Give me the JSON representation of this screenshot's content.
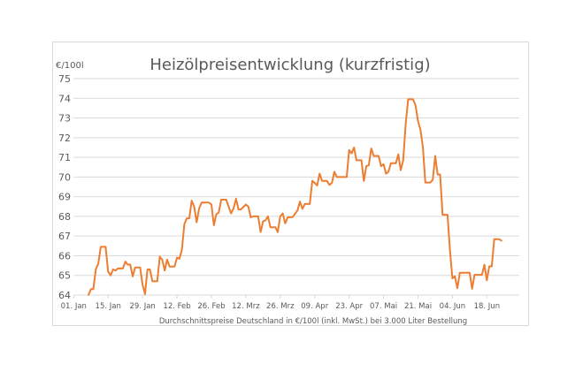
{
  "chart_data": {
    "type": "line",
    "title": "Heizölpreisentwicklung (kurzfristig)",
    "ylabel": "€/100l",
    "xlabel": "Durchschnittspreise Deutschland in €/100l (inkl. MwSt.) bei 3.000 Liter Bestellung",
    "ylim": [
      64,
      75
    ],
    "yticks": [
      64,
      65,
      66,
      67,
      68,
      69,
      70,
      71,
      72,
      73,
      74,
      75
    ],
    "xticks": [
      {
        "date": "01-01",
        "label": "01. Jan"
      },
      {
        "date": "01-15",
        "label": "15. Jan"
      },
      {
        "date": "01-29",
        "label": "29. Jan"
      },
      {
        "date": "02-12",
        "label": "12. Feb"
      },
      {
        "date": "02-26",
        "label": "26. Feb"
      },
      {
        "date": "03-12",
        "label": "12. Mrz"
      },
      {
        "date": "03-26",
        "label": "26. Mrz"
      },
      {
        "date": "04-09",
        "label": "09. Apr"
      },
      {
        "date": "04-23",
        "label": "23. Apr"
      },
      {
        "date": "05-07",
        "label": "07. Mai"
      },
      {
        "date": "05-21",
        "label": "21. Mai"
      },
      {
        "date": "06-04",
        "label": "04. Jun"
      },
      {
        "date": "06-18",
        "label": "18. Jun"
      }
    ],
    "grid": true,
    "legend": "none",
    "line_color": "#ed7d31",
    "points": [
      [
        "01-07",
        64.0
      ],
      [
        "01-08",
        64.3
      ],
      [
        "01-09",
        64.3
      ],
      [
        "01-10",
        65.3
      ],
      [
        "01-11",
        65.6
      ],
      [
        "01-12",
        66.45
      ],
      [
        "01-14",
        66.45
      ],
      [
        "01-15",
        65.2
      ],
      [
        "01-16",
        65.0
      ],
      [
        "01-17",
        65.3
      ],
      [
        "01-18",
        65.25
      ],
      [
        "01-19",
        65.35
      ],
      [
        "01-21",
        65.35
      ],
      [
        "01-22",
        65.7
      ],
      [
        "01-23",
        65.55
      ],
      [
        "01-24",
        65.55
      ],
      [
        "01-25",
        64.95
      ],
      [
        "01-26",
        65.4
      ],
      [
        "01-28",
        65.4
      ],
      [
        "01-29",
        64.55
      ],
      [
        "01-30",
        64.05
      ],
      [
        "01-31",
        65.3
      ],
      [
        "02-01",
        65.3
      ],
      [
        "02-02",
        64.7
      ],
      [
        "02-04",
        64.7
      ],
      [
        "02-05",
        65.95
      ],
      [
        "02-06",
        65.8
      ],
      [
        "02-07",
        65.25
      ],
      [
        "02-08",
        65.8
      ],
      [
        "02-09",
        65.45
      ],
      [
        "02-11",
        65.45
      ],
      [
        "02-12",
        65.9
      ],
      [
        "02-13",
        65.85
      ],
      [
        "02-14",
        66.3
      ],
      [
        "02-15",
        67.6
      ],
      [
        "02-16",
        67.9
      ],
      [
        "02-17",
        67.9
      ],
      [
        "02-18",
        68.8
      ],
      [
        "02-19",
        68.5
      ],
      [
        "02-20",
        67.7
      ],
      [
        "02-21",
        68.4
      ],
      [
        "02-22",
        68.7
      ],
      [
        "02-25",
        68.7
      ],
      [
        "02-26",
        68.6
      ],
      [
        "02-27",
        67.55
      ],
      [
        "02-28",
        68.1
      ],
      [
        "03-01",
        68.2
      ],
      [
        "03-02",
        68.85
      ],
      [
        "03-04",
        68.85
      ],
      [
        "03-06",
        68.15
      ],
      [
        "03-07",
        68.4
      ],
      [
        "03-08",
        68.9
      ],
      [
        "03-09",
        68.35
      ],
      [
        "03-10",
        68.35
      ],
      [
        "03-12",
        68.6
      ],
      [
        "03-13",
        68.5
      ],
      [
        "03-14",
        67.95
      ],
      [
        "03-15",
        68.0
      ],
      [
        "03-17",
        68.0
      ],
      [
        "03-18",
        67.2
      ],
      [
        "03-19",
        67.75
      ],
      [
        "03-20",
        67.8
      ],
      [
        "03-21",
        68.0
      ],
      [
        "03-22",
        67.45
      ],
      [
        "03-24",
        67.45
      ],
      [
        "03-25",
        67.2
      ],
      [
        "03-26",
        68.0
      ],
      [
        "03-27",
        68.15
      ],
      [
        "03-28",
        67.65
      ],
      [
        "03-29",
        67.95
      ],
      [
        "03-31",
        67.96
      ],
      [
        "04-02",
        68.3
      ],
      [
        "04-03",
        68.75
      ],
      [
        "04-04",
        68.38
      ],
      [
        "04-05",
        68.63
      ],
      [
        "04-07",
        68.63
      ],
      [
        "04-08",
        69.8
      ],
      [
        "04-09",
        69.7
      ],
      [
        "04-10",
        69.57
      ],
      [
        "04-11",
        70.17
      ],
      [
        "04-12",
        69.8
      ],
      [
        "04-14",
        69.8
      ],
      [
        "04-15",
        69.6
      ],
      [
        "04-16",
        69.7
      ],
      [
        "04-17",
        70.27
      ],
      [
        "04-18",
        70.0
      ],
      [
        "04-22",
        70.0
      ],
      [
        "04-23",
        71.37
      ],
      [
        "04-24",
        71.2
      ],
      [
        "04-25",
        71.5
      ],
      [
        "04-26",
        70.85
      ],
      [
        "04-28",
        70.85
      ],
      [
        "04-29",
        69.8
      ],
      [
        "04-30",
        70.55
      ],
      [
        "05-01",
        70.6
      ],
      [
        "05-02",
        71.45
      ],
      [
        "05-03",
        71.07
      ],
      [
        "05-05",
        71.07
      ],
      [
        "05-06",
        70.55
      ],
      [
        "05-07",
        70.65
      ],
      [
        "05-08",
        70.17
      ],
      [
        "05-09",
        70.27
      ],
      [
        "05-10",
        70.7
      ],
      [
        "05-12",
        70.7
      ],
      [
        "05-13",
        71.15
      ],
      [
        "05-14",
        70.35
      ],
      [
        "05-15",
        70.85
      ],
      [
        "05-16",
        72.7
      ],
      [
        "05-17",
        73.95
      ],
      [
        "05-19",
        73.95
      ],
      [
        "05-20",
        73.65
      ],
      [
        "05-21",
        72.85
      ],
      [
        "05-22",
        72.4
      ],
      [
        "05-23",
        71.5
      ],
      [
        "05-24",
        69.72
      ],
      [
        "05-26",
        69.72
      ],
      [
        "05-27",
        69.85
      ],
      [
        "05-28",
        71.07
      ],
      [
        "05-29",
        70.13
      ],
      [
        "05-30",
        70.13
      ],
      [
        "05-31",
        68.08
      ],
      [
        "06-02",
        68.08
      ],
      [
        "06-03",
        66.3
      ],
      [
        "06-04",
        64.85
      ],
      [
        "06-05",
        64.95
      ],
      [
        "06-06",
        64.35
      ],
      [
        "06-07",
        65.13
      ],
      [
        "06-11",
        65.13
      ],
      [
        "06-12",
        64.32
      ],
      [
        "06-13",
        65.03
      ],
      [
        "06-16",
        65.03
      ],
      [
        "06-17",
        65.54
      ],
      [
        "06-18",
        64.75
      ],
      [
        "06-19",
        65.46
      ],
      [
        "06-20",
        65.46
      ],
      [
        "06-21",
        66.84
      ],
      [
        "06-23",
        66.84
      ],
      [
        "06-24",
        66.76
      ]
    ]
  }
}
